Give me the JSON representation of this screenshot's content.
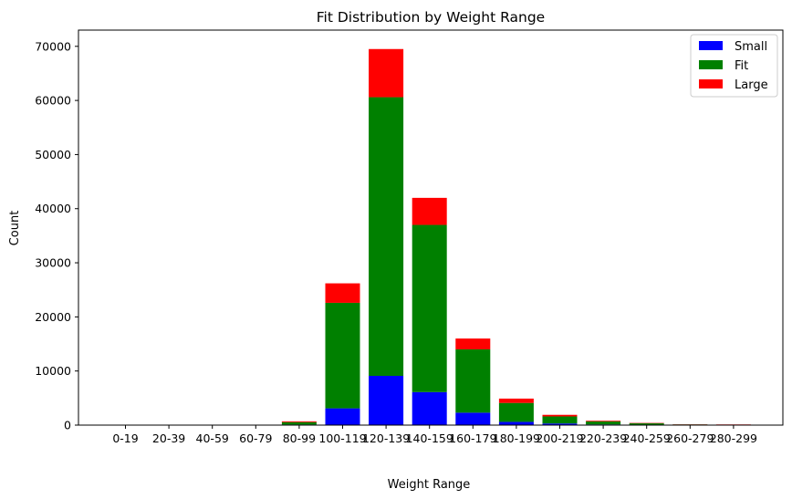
{
  "chart_data": {
    "type": "bar",
    "stacked": true,
    "title": "Fit Distribution by Weight Range",
    "xlabel": "Weight Range",
    "ylabel": "Count",
    "ylim": [
      0,
      73000
    ],
    "yticks": [
      0,
      10000,
      20000,
      30000,
      40000,
      50000,
      60000,
      70000
    ],
    "categories": [
      "0-19",
      "20-39",
      "40-59",
      "60-79",
      "80-99",
      "100-119",
      "120-139",
      "140-159",
      "160-179",
      "180-199",
      "200-219",
      "220-239",
      "240-259",
      "260-279",
      "280-299"
    ],
    "series": [
      {
        "name": "Small",
        "color": "#0000ff",
        "values": [
          0,
          0,
          0,
          0,
          100,
          3100,
          9100,
          6100,
          2300,
          600,
          300,
          120,
          80,
          30,
          20
        ]
      },
      {
        "name": "Fit",
        "color": "#008000",
        "values": [
          0,
          0,
          0,
          0,
          450,
          19500,
          51500,
          30900,
          11700,
          3500,
          1300,
          550,
          250,
          90,
          60
        ]
      },
      {
        "name": "Large",
        "color": "#ff0000",
        "values": [
          0,
          0,
          0,
          0,
          150,
          3600,
          8900,
          5000,
          2000,
          800,
          300,
          130,
          70,
          30,
          40
        ]
      }
    ],
    "legend_position": "top-right",
    "grid": false
  }
}
